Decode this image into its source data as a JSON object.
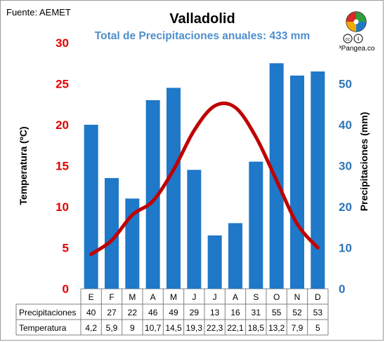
{
  "source_label": "Fuente: AEMET",
  "brand": {
    "site": "APPangea.com",
    "cc": "cc",
    "by": "i"
  },
  "colors": {
    "bar": "#1f78c8",
    "line": "#c00000",
    "temp_axis": "#e00000",
    "precip_axis": "#2e75b6",
    "subtitle": "#4f8fcb",
    "grid": "#bfbfbf"
  },
  "chart_data": {
    "type": "bar",
    "title": "Valladolid",
    "subtitle": "Total de Precipitaciones anuales: 433 mm",
    "categories": [
      "E",
      "F",
      "M",
      "A",
      "M",
      "J",
      "J",
      "A",
      "S",
      "O",
      "N",
      "D"
    ],
    "series": [
      {
        "name": "Precipitaciones",
        "type": "bar",
        "axis": "right",
        "values": [
          40,
          27,
          22,
          46,
          49,
          29,
          13,
          16,
          31,
          55,
          52,
          53
        ]
      },
      {
        "name": "Temperatura",
        "type": "line",
        "axis": "left",
        "values": [
          4.2,
          5.9,
          9,
          10.7,
          14.5,
          19.3,
          22.3,
          22.1,
          18.5,
          13.2,
          7.9,
          5
        ]
      }
    ],
    "table_values": {
      "precip": [
        "40",
        "27",
        "22",
        "46",
        "49",
        "29",
        "13",
        "16",
        "31",
        "55",
        "52",
        "53"
      ],
      "temp": [
        "4,2",
        "5,9",
        "9",
        "10,7",
        "14,5",
        "19,3",
        "22,3",
        "22,1",
        "18,5",
        "13,2",
        "7,9",
        "5"
      ]
    },
    "ylabel_left": "Temperatura (ºC)",
    "ylabel_right": "Precipitaciones (mm)",
    "ylim_left": [
      0,
      30
    ],
    "ylim_right": [
      0,
      60
    ],
    "yticks_left": [
      0,
      5,
      10,
      15,
      20,
      25,
      30
    ],
    "yticks_right": [
      0,
      10,
      20,
      30,
      40,
      50
    ],
    "grid": false
  }
}
